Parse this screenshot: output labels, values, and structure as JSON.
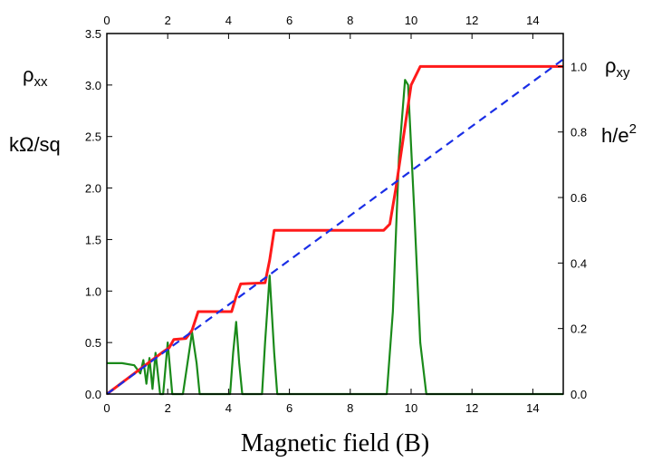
{
  "chart_data": {
    "type": "line",
    "xlabel": "Magnetic field (B)",
    "ylabel_left": {
      "symbol": "ρ",
      "sub": "xx",
      "unit": "kΩ/sq"
    },
    "ylabel_right": {
      "symbol": "ρ",
      "sub": "xy",
      "unit_base": "h/e",
      "unit_sup": "2"
    },
    "xlim": [
      0,
      15
    ],
    "ylim_left": [
      0,
      3.5
    ],
    "right_axis_scale": 3.18,
    "x_ticks": [
      "0",
      "2",
      "4",
      "6",
      "8",
      "10",
      "12",
      "14"
    ],
    "x_tick_values": [
      0,
      2,
      4,
      6,
      8,
      10,
      12,
      14
    ],
    "y_left_ticks": [
      "0.0",
      "0.5",
      "1.0",
      "1.5",
      "2.0",
      "2.5",
      "3.0",
      "3.5"
    ],
    "y_left_tick_values": [
      0,
      0.5,
      1,
      1.5,
      2,
      2.5,
      3,
      3.5
    ],
    "y_right_ticks": [
      "0.0",
      "0.2",
      "0.4",
      "0.6",
      "0.8",
      "1.0"
    ],
    "y_right_tick_values": [
      0,
      0.2,
      0.4,
      0.6,
      0.8,
      1.0
    ],
    "series": [
      {
        "name": "rho_xx",
        "color": "#1a8a1a",
        "style": "solid",
        "points": [
          [
            0,
            0.3
          ],
          [
            0.5,
            0.3
          ],
          [
            0.9,
            0.28
          ],
          [
            1.1,
            0.2
          ],
          [
            1.2,
            0.33
          ],
          [
            1.3,
            0.1
          ],
          [
            1.4,
            0.35
          ],
          [
            1.5,
            0.05
          ],
          [
            1.6,
            0.4
          ],
          [
            1.75,
            0
          ],
          [
            1.85,
            0
          ],
          [
            2.0,
            0.5
          ],
          [
            2.15,
            0
          ],
          [
            2.5,
            0
          ],
          [
            2.6,
            0.2
          ],
          [
            2.8,
            0.6
          ],
          [
            2.95,
            0.3
          ],
          [
            3.05,
            0
          ],
          [
            4.05,
            0
          ],
          [
            4.15,
            0.4
          ],
          [
            4.25,
            0.7
          ],
          [
            4.35,
            0.3
          ],
          [
            4.45,
            0
          ],
          [
            5.1,
            0
          ],
          [
            5.2,
            0.5
          ],
          [
            5.35,
            1.15
          ],
          [
            5.5,
            0.4
          ],
          [
            5.6,
            0
          ],
          [
            9.2,
            0
          ],
          [
            9.4,
            0.8
          ],
          [
            9.6,
            2.3
          ],
          [
            9.8,
            3.05
          ],
          [
            9.9,
            3.0
          ],
          [
            10.1,
            1.8
          ],
          [
            10.3,
            0.5
          ],
          [
            10.5,
            0
          ],
          [
            15,
            0
          ]
        ]
      },
      {
        "name": "rho_xy",
        "color": "#ff1a1a",
        "style": "solid",
        "points": [
          [
            0,
            0
          ],
          [
            1.8,
            0.4
          ],
          [
            1.9,
            0.42
          ],
          [
            2.05,
            0.45
          ],
          [
            2.2,
            0.53
          ],
          [
            2.6,
            0.54
          ],
          [
            2.8,
            0.62
          ],
          [
            3.0,
            0.8
          ],
          [
            4.1,
            0.8
          ],
          [
            4.25,
            0.95
          ],
          [
            4.4,
            1.07
          ],
          [
            5.2,
            1.08
          ],
          [
            5.35,
            1.3
          ],
          [
            5.5,
            1.59
          ],
          [
            9.1,
            1.59
          ],
          [
            9.3,
            1.65
          ],
          [
            9.5,
            2.0
          ],
          [
            9.8,
            2.6
          ],
          [
            10.0,
            3.0
          ],
          [
            10.3,
            3.18
          ],
          [
            15,
            3.18
          ]
        ]
      },
      {
        "name": "classical_hall",
        "color": "#1a2ee6",
        "style": "dashed",
        "points": [
          [
            0,
            0
          ],
          [
            15,
            3.25
          ]
        ]
      }
    ]
  }
}
